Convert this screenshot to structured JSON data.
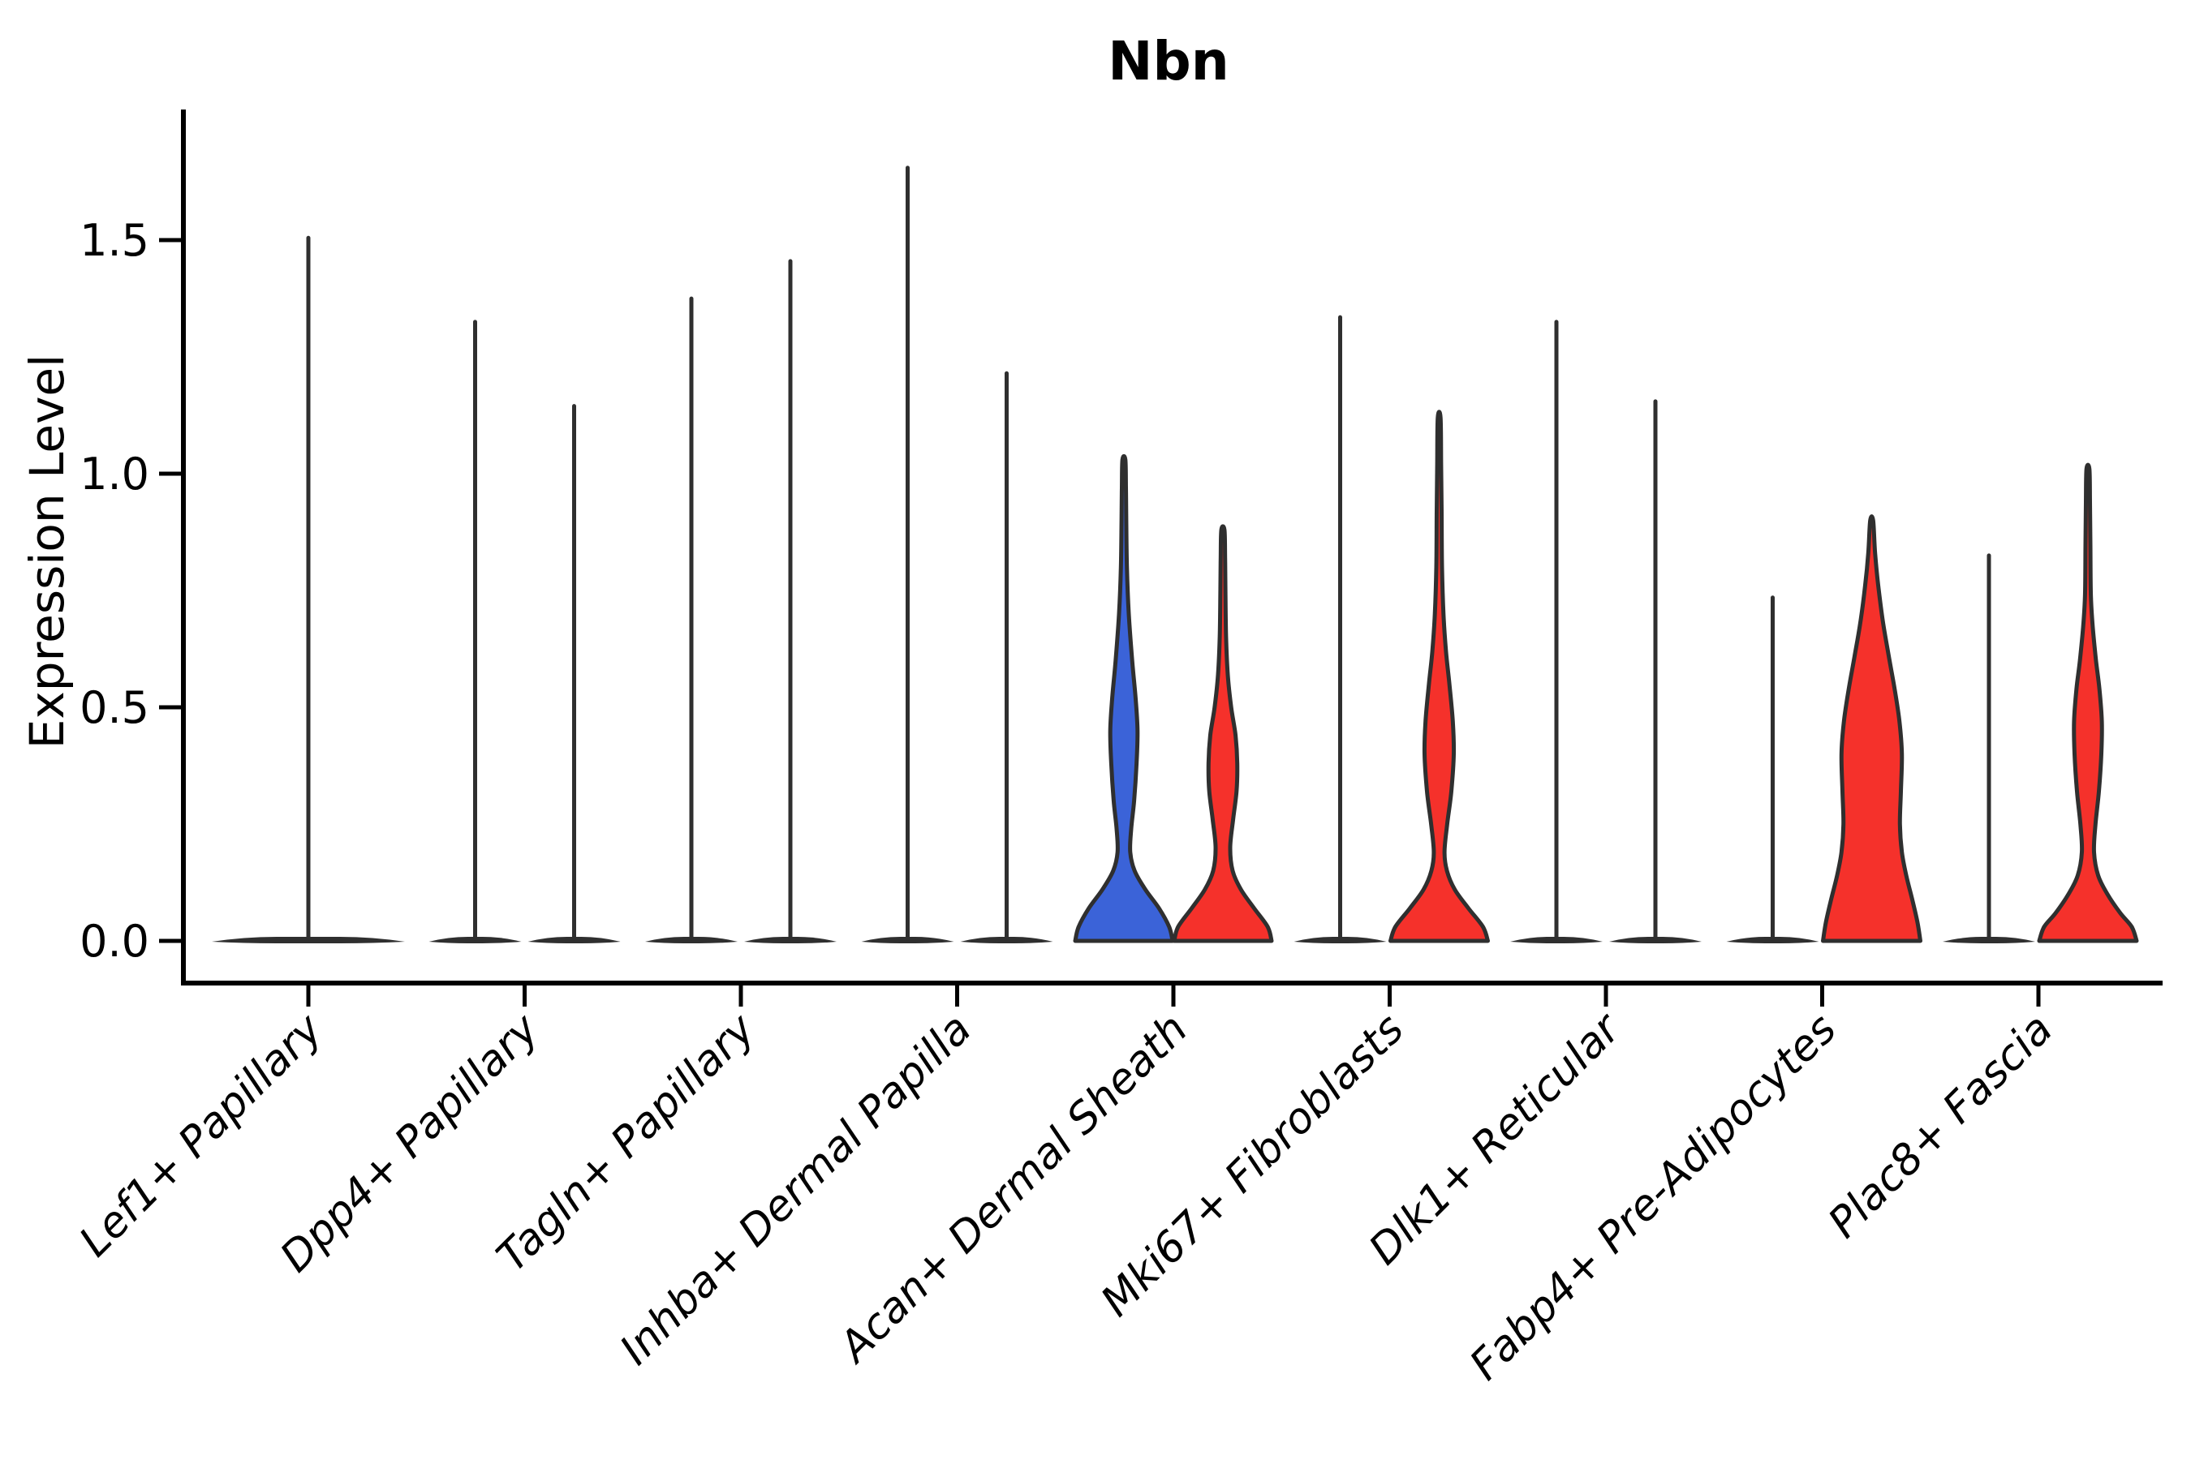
{
  "chart_data": {
    "type": "violin",
    "title": "Nbn",
    "ylabel": "Expression Level",
    "xlabel": "",
    "ylim": [
      0,
      1.78
    ],
    "yticks": [
      0.0,
      0.5,
      1.0,
      1.5
    ],
    "ytick_labels": [
      "0.0",
      "0.5",
      "1.0",
      "1.5"
    ],
    "grid": "off",
    "legend": "none",
    "colors": {
      "blue": "#3B63D8",
      "red": "#F5312B",
      "outline": "#2F2F2F",
      "axis": "#000000"
    },
    "categories": [
      {
        "label": "Lef1+ Papillary",
        "violins": [
          {
            "position": "center",
            "type": "spike",
            "fill": "none",
            "max": 1.51
          }
        ]
      },
      {
        "label": "Dpp4+ Papillary",
        "violins": [
          {
            "position": "left",
            "type": "spike",
            "fill": "none",
            "max": 1.33
          },
          {
            "position": "right",
            "type": "spike",
            "fill": "none",
            "max": 1.15
          }
        ]
      },
      {
        "label": "Tagln+ Papillary",
        "violins": [
          {
            "position": "left",
            "type": "spike",
            "fill": "none",
            "max": 1.38
          },
          {
            "position": "right",
            "type": "spike",
            "fill": "none",
            "max": 1.46
          }
        ]
      },
      {
        "label": "Inhba+ Dermal Papilla",
        "violins": [
          {
            "position": "left",
            "type": "spike",
            "fill": "none",
            "max": 1.66
          },
          {
            "position": "right",
            "type": "spike",
            "fill": "none",
            "max": 1.22
          }
        ]
      },
      {
        "label": "Acan+ Dermal Sheath",
        "violins": [
          {
            "position": "left",
            "type": "violin",
            "fill": "blue",
            "max": 1.03,
            "profile": [
              [
                0,
                1.0
              ],
              [
                0.03,
                0.93
              ],
              [
                0.07,
                0.72
              ],
              [
                0.11,
                0.44
              ],
              [
                0.15,
                0.22
              ],
              [
                0.19,
                0.13
              ],
              [
                0.24,
                0.15
              ],
              [
                0.3,
                0.21
              ],
              [
                0.38,
                0.26
              ],
              [
                0.45,
                0.28
              ],
              [
                0.52,
                0.24
              ],
              [
                0.6,
                0.17
              ],
              [
                0.7,
                0.1
              ],
              [
                0.8,
                0.062
              ],
              [
                0.9,
                0.048
              ],
              [
                0.97,
                0.042
              ],
              [
                1.03,
                0.03
              ]
            ]
          },
          {
            "position": "right",
            "type": "violin",
            "fill": "red",
            "max": 0.88,
            "profile": [
              [
                0,
                1.0
              ],
              [
                0.03,
                0.92
              ],
              [
                0.07,
                0.64
              ],
              [
                0.11,
                0.37
              ],
              [
                0.15,
                0.2
              ],
              [
                0.2,
                0.15
              ],
              [
                0.26,
                0.21
              ],
              [
                0.32,
                0.28
              ],
              [
                0.38,
                0.295
              ],
              [
                0.44,
                0.26
              ],
              [
                0.5,
                0.17
              ],
              [
                0.57,
                0.1
              ],
              [
                0.65,
                0.065
              ],
              [
                0.75,
                0.052
              ],
              [
                0.82,
                0.045
              ],
              [
                0.88,
                0.032
              ]
            ]
          }
        ]
      },
      {
        "label": "Mki67+ Fibroblasts",
        "violins": [
          {
            "position": "left",
            "type": "spike",
            "fill": "none",
            "max": 1.34
          },
          {
            "position": "right",
            "type": "violin",
            "fill": "red",
            "max": 1.12,
            "profile": [
              [
                0,
                1.0
              ],
              [
                0.03,
                0.9
              ],
              [
                0.07,
                0.6
              ],
              [
                0.11,
                0.32
              ],
              [
                0.15,
                0.16
              ],
              [
                0.19,
                0.11
              ],
              [
                0.25,
                0.165
              ],
              [
                0.32,
                0.25
              ],
              [
                0.4,
                0.3
              ],
              [
                0.47,
                0.28
              ],
              [
                0.55,
                0.21
              ],
              [
                0.62,
                0.14
              ],
              [
                0.7,
                0.088
              ],
              [
                0.8,
                0.058
              ],
              [
                0.92,
                0.05
              ],
              [
                1.02,
                0.04
              ],
              [
                1.12,
                0.028
              ]
            ]
          }
        ]
      },
      {
        "label": "Dlk1+ Reticular",
        "violins": [
          {
            "position": "left",
            "type": "spike",
            "fill": "none",
            "max": 1.33
          },
          {
            "position": "right",
            "type": "spike",
            "fill": "none",
            "max": 1.16
          }
        ]
      },
      {
        "label": "Fabp4+ Pre-Adipocytes",
        "violins": [
          {
            "position": "left",
            "type": "spike",
            "fill": "none",
            "max": 0.74
          },
          {
            "position": "right",
            "type": "violin",
            "fill": "red",
            "max": 0.9,
            "profile": [
              [
                0,
                1.0
              ],
              [
                0.04,
                0.94
              ],
              [
                0.09,
                0.83
              ],
              [
                0.14,
                0.71
              ],
              [
                0.19,
                0.62
              ],
              [
                0.25,
                0.58
              ],
              [
                0.32,
                0.6
              ],
              [
                0.4,
                0.62
              ],
              [
                0.47,
                0.57
              ],
              [
                0.54,
                0.47
              ],
              [
                0.61,
                0.35
              ],
              [
                0.68,
                0.235
              ],
              [
                0.76,
                0.135
              ],
              [
                0.83,
                0.07
              ],
              [
                0.9,
                0.03
              ]
            ]
          }
        ]
      },
      {
        "label": "Plac8+ Fascia",
        "violins": [
          {
            "position": "left",
            "type": "spike",
            "fill": "none",
            "max": 0.83
          },
          {
            "position": "right",
            "type": "violin",
            "fill": "red",
            "max": 1.01,
            "profile": [
              [
                0,
                1.0
              ],
              [
                0.03,
                0.9
              ],
              [
                0.06,
                0.66
              ],
              [
                0.1,
                0.4
              ],
              [
                0.14,
                0.21
              ],
              [
                0.19,
                0.125
              ],
              [
                0.25,
                0.155
              ],
              [
                0.32,
                0.225
              ],
              [
                0.4,
                0.275
              ],
              [
                0.47,
                0.285
              ],
              [
                0.54,
                0.235
              ],
              [
                0.6,
                0.165
              ],
              [
                0.67,
                0.1
              ],
              [
                0.74,
                0.06
              ],
              [
                0.85,
                0.05
              ],
              [
                0.94,
                0.042
              ],
              [
                1.01,
                0.03
              ]
            ]
          }
        ]
      }
    ]
  }
}
